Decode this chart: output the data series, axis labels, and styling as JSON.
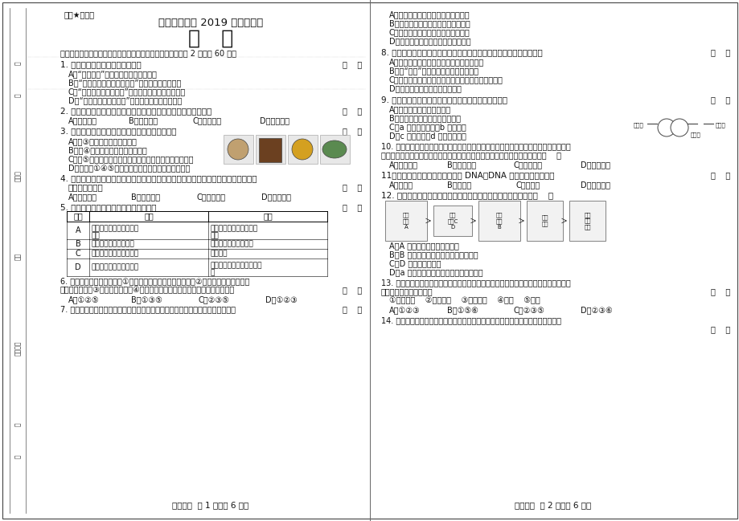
{
  "bg_color": "#f0ede8",
  "page_bg": "#ffffff",
  "top_left_text": "绝密★启用前",
  "title_main": "湖北省宜昌市 2019 年中考试卷",
  "title_sub": "生   物",
  "section1_header": "一、选择题（下列各题中，只有一个选项最符合题意，每小题 2 分，计 60 分）",
  "q1": "1. 关于生物特征的说法，正确的是",
  "q1a": "A．“蚕跇点水”体现的是生物能排出废物",
  "q1b": "B．“红豆生南国，春来发几枝”体现的是生物能生长",
  "q1c": "C．“种瓜得瓜，种豆得豆”体现的是生物有变异的特性",
  "q1d": "D．“螇螂捕蝉，黄雀在后”体现的是生物能进行呼吸",
  "q2": "2. 科学家利用干细胞成功地制造出了心脏细胞，这种转变过程称为",
  "q2a": "A．细胞分裂",
  "q2b": "B．细胞生长",
  "q2c": "C．细胞分化",
  "q2d": "D．细胞凋亡",
  "q3": "3. 如图为四种不同的生物细胞，下列叙述正确的是",
  "q3a": "A．图③细胞组成的是上皮组织",
  "q3b": "B．图④细胞所在的生物体没有系统",
  "q3c": "C．图⑤细胞能完成各种生理功能，是细胞分裂分化的结果",
  "q3d": "D．一个人①④⑤细胞里染色体的形态和数目是相同的",
  "q4": "4. 小蜂对某一植物进行了长期的观察，发现它有根、茎、叶和种子，但没有花和果实，",
  "q4_line2": "你认为该植物是",
  "q4a": "A．苔韓植物",
  "q4b": "B．蕨类植物",
  "q4c": "C．裸子植物",
  "q4d": "D．被子植物",
  "q5": "5. 对被子植物一些现象的解释，正确的是",
  "q5_header": [
    "选项",
    "现象",
    "解释"
  ],
  "q5_A_phen1": "被昆虫咋坏胚的种子不能",
  "q5_A_phen2": "萌发",
  "q5_A_expl1": "种子能否萌发与胚的完整",
  "q5_A_expl2": "无关",
  "q5_B_phen": "种庄稼或者养花时施肮",
  "q5_B_expl": "植物的生长需要有机物",
  "q5_C_phen": "移植幼苗时，根部常点土",
  "q5_C_expl": "保护根毛",
  "q5_D_phen1": "雌蕊中的子房发育成果实",
  "q5_D_phen2": "",
  "q5_D_expl1": "只要有雌蕊，都将发育成果",
  "q5_D_expl2": "实",
  "q6_line1": "6. 下列生产生活中的措施：①水果、蔬菜在冰筱中低温贮藏，②在贮藏簮食的密封仓内",
  "q6_line2": "充加二氧化碳，③农田及时松土，④小麦种子晨干入库，能抑制植物呼吸作用的是",
  "q6a": "A．①②⑤",
  "q6b": "B．①③⑤",
  "q6c": "C．②③⑤",
  "q6d": "D．①②③",
  "q7_line": "7. 父母生育了我们，可呼我们健康成长，我们要常怀感恩之心，下列叙述正确的是",
  "q7a": "A．孕妇怀孕期间的增重都来自于胎儿",
  "q7b": "B．精子与卵细胞在卵巢内形成受精卵",
  "q7c": "C．脑带是胎儿与母体交换物质的结构",
  "q7d": "D．母亲分娩时常常伴随着剧烈的阵痛",
  "q8": "8. 食品安全问题，关乎公民的生命安全和身体健康，下列叙述正确的是",
  "q8a": "A．在购买快餐时只需注意店面是否卫生即可",
  "q8b": "B．有“虫眼”的蔬菜水果农药含量一定少",
  "q8c": "C．对购买的蔬菜水果要用清水浸泡、冲洗或削去外皮",
  "q8d": "D．能用发霉的剩饭喂养家禽家畜",
  "q9": "9. 如图为肺泡内的气体交换示意图，下列叙述正确的是",
  "q9a": "A．血管甲是动脉，流动脉血",
  "q9b": "B．血管乙只允许红细胞单行通过",
  "q9c": "C．a 代表二氧化碳、b 代表氧气",
  "q9d": "D．c 代表氧气、d 代表二氧化碳",
  "q10_line1": "10. 线粒体是细胞的「动力车间」，它能氧化分解有机物，释放能量，研究发现不同生物",
  "q10_line2": "细胞含有的线粒体数目不一样，请推测，下列人体细胞中含有线粒体最多的是（    ）",
  "q10a": "A．脂肪细胞",
  "q10b": "B．腹肌细胞",
  "q10c": "C．皮肤细胞",
  "q10d": "D．心肌细胞",
  "q11": "11．「亲子鉴定」常从血液中提取 DNA，DNA 主要来自于血液中的",
  "q11a": "A．白细胞",
  "q11b": "B．红细胞",
  "q11c": "C．血小板",
  "q11d": "D．血红蛋白",
  "q12": "12. 如图是人体消化、呼吸和循环系统示意图，下列叙述正确的是（    ）",
  "q12a": "A．A 系统的主要器官是支气管",
  "q12b": "B．B 系统中吸收营养的主要器官是小肠",
  "q12c": "C．D 的名称是左心房",
  "q12d": "D．a 代表葡萄糖、脂肪酸、蛋白质等物质",
  "q13_line1": "13. 人体生命活动会产生二氧化碳、尿素、多余的水和无机盐等废物，将它们排出体外的",
  "q13_line2": "是下列哪些系统或器官？",
  "q13_opts": "①消化系统    ②泌尿系统    ③呼吸系统    ④心脏    ⑤皮肤",
  "q13a": "A．①②③",
  "q13b": "B．①⑤⑥",
  "q13c": "C．②③⑤",
  "q13d": "D．②③⑥",
  "q14_line": "14. 元旦晚会上，小明讲笑话逾得大家捥腹大笑，下列反射与此属于同一个类型的是",
  "page1_footer": "生物试卷  第 1 页（共 6 页）",
  "page2_footer": "生物试卷  第 2 页（共 6 页）"
}
